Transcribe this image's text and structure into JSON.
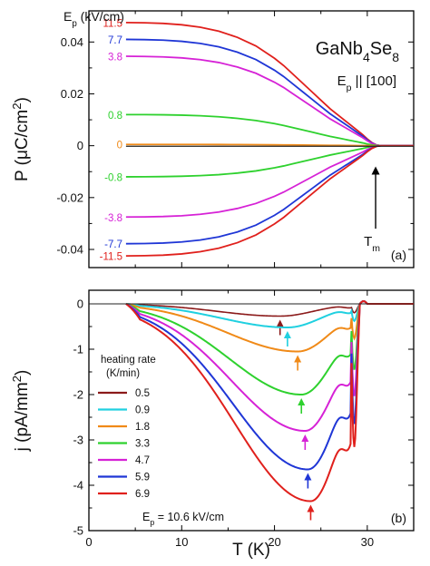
{
  "chart_data": [
    {
      "type": "line",
      "panel_label": "(a)",
      "title": "GaNb4Se8",
      "ylabel": "P (μC/cm²)",
      "xlim": [
        0,
        35
      ],
      "ylim": [
        -0.047,
        0.052
      ],
      "x_ticks": [
        0,
        10,
        20,
        30
      ],
      "y_ticks": [
        -0.04,
        -0.02,
        0,
        0.02,
        0.04
      ],
      "y_tick_labels": [
        "-0.04",
        "-0.02",
        "0",
        "0.02",
        "0.04"
      ],
      "legend_title": "Ep (kV/cm)",
      "field_direction": "Ep || [100]",
      "annotation": "Tm",
      "annotation_arrow": {
        "from": [
          30.9,
          -0.032
        ],
        "to": [
          30.9,
          -0.008
        ]
      },
      "curve_x": [
        4,
        6,
        8,
        10,
        12,
        14,
        16,
        18,
        20,
        21,
        22,
        23,
        24,
        25,
        26,
        27,
        28,
        29,
        29.5,
        30,
        30.5,
        31,
        31.5,
        32,
        33,
        34,
        35
      ],
      "curve_shape": [
        1.0,
        0.998,
        0.993,
        0.982,
        0.962,
        0.93,
        0.88,
        0.81,
        0.71,
        0.65,
        0.58,
        0.51,
        0.44,
        0.37,
        0.3,
        0.24,
        0.18,
        0.12,
        0.09,
        0.055,
        0.025,
        0.006,
        0.0,
        0.0,
        0.0,
        0.0,
        0.0
      ],
      "series": [
        {
          "name": "11.5",
          "color": "#e0201c",
          "scale": 0.0475
        },
        {
          "name": "7.7",
          "color": "#1f36d6",
          "scale": 0.041
        },
        {
          "name": "3.8",
          "color": "#d622d6",
          "scale": 0.0345
        },
        {
          "name": "0.8",
          "color": "#2ed12e",
          "scale": 0.012
        },
        {
          "name": "0",
          "color": "#f08a18",
          "scale": 0.0005
        },
        {
          "name": "-0.8",
          "color": "#2ed12e",
          "scale": -0.012
        },
        {
          "name": "-3.8",
          "color": "#d622d6",
          "scale": -0.0275
        },
        {
          "name": "-7.7",
          "color": "#1f36d6",
          "scale": -0.0378
        },
        {
          "name": "-11.5",
          "color": "#e0201c",
          "scale": -0.0425
        }
      ],
      "baseline_color": "#222222"
    },
    {
      "type": "line",
      "panel_label": "(b)",
      "xlabel": "T (K)",
      "ylabel": "j (pA/mm²)",
      "xlim": [
        0,
        35
      ],
      "ylim": [
        -5,
        0.3
      ],
      "x_ticks": [
        0,
        10,
        20,
        30
      ],
      "x_tick_labels": [
        "0",
        "10",
        "20",
        "30"
      ],
      "y_ticks": [
        -5,
        -4,
        -3,
        -2,
        -1,
        0
      ],
      "y_tick_labels": [
        "-5",
        "-4",
        "-3",
        "-2",
        "-1",
        "0"
      ],
      "legend_title": "heating rate (K/min)",
      "annotation": "Ep = 10.6 kV/cm",
      "series": [
        {
          "name": "0.5",
          "color": "#8b1a1a",
          "peak_T": 20.6,
          "min_j": -0.27
        },
        {
          "name": "0.9",
          "color": "#20d0e0",
          "peak_T": 21.4,
          "min_j": -0.52
        },
        {
          "name": "1.8",
          "color": "#f08a18",
          "peak_T": 22.5,
          "min_j": -1.05
        },
        {
          "name": "3.3",
          "color": "#2ed12e",
          "peak_T": 22.9,
          "min_j": -2.0
        },
        {
          "name": "4.7",
          "color": "#d622d6",
          "peak_T": 23.3,
          "min_j": -2.8
        },
        {
          "name": "5.9",
          "color": "#1f36d6",
          "peak_T": 23.6,
          "min_j": -3.65
        },
        {
          "name": "6.9",
          "color": "#e0201c",
          "peak_T": 23.9,
          "min_j": -4.35
        }
      ]
    }
  ]
}
